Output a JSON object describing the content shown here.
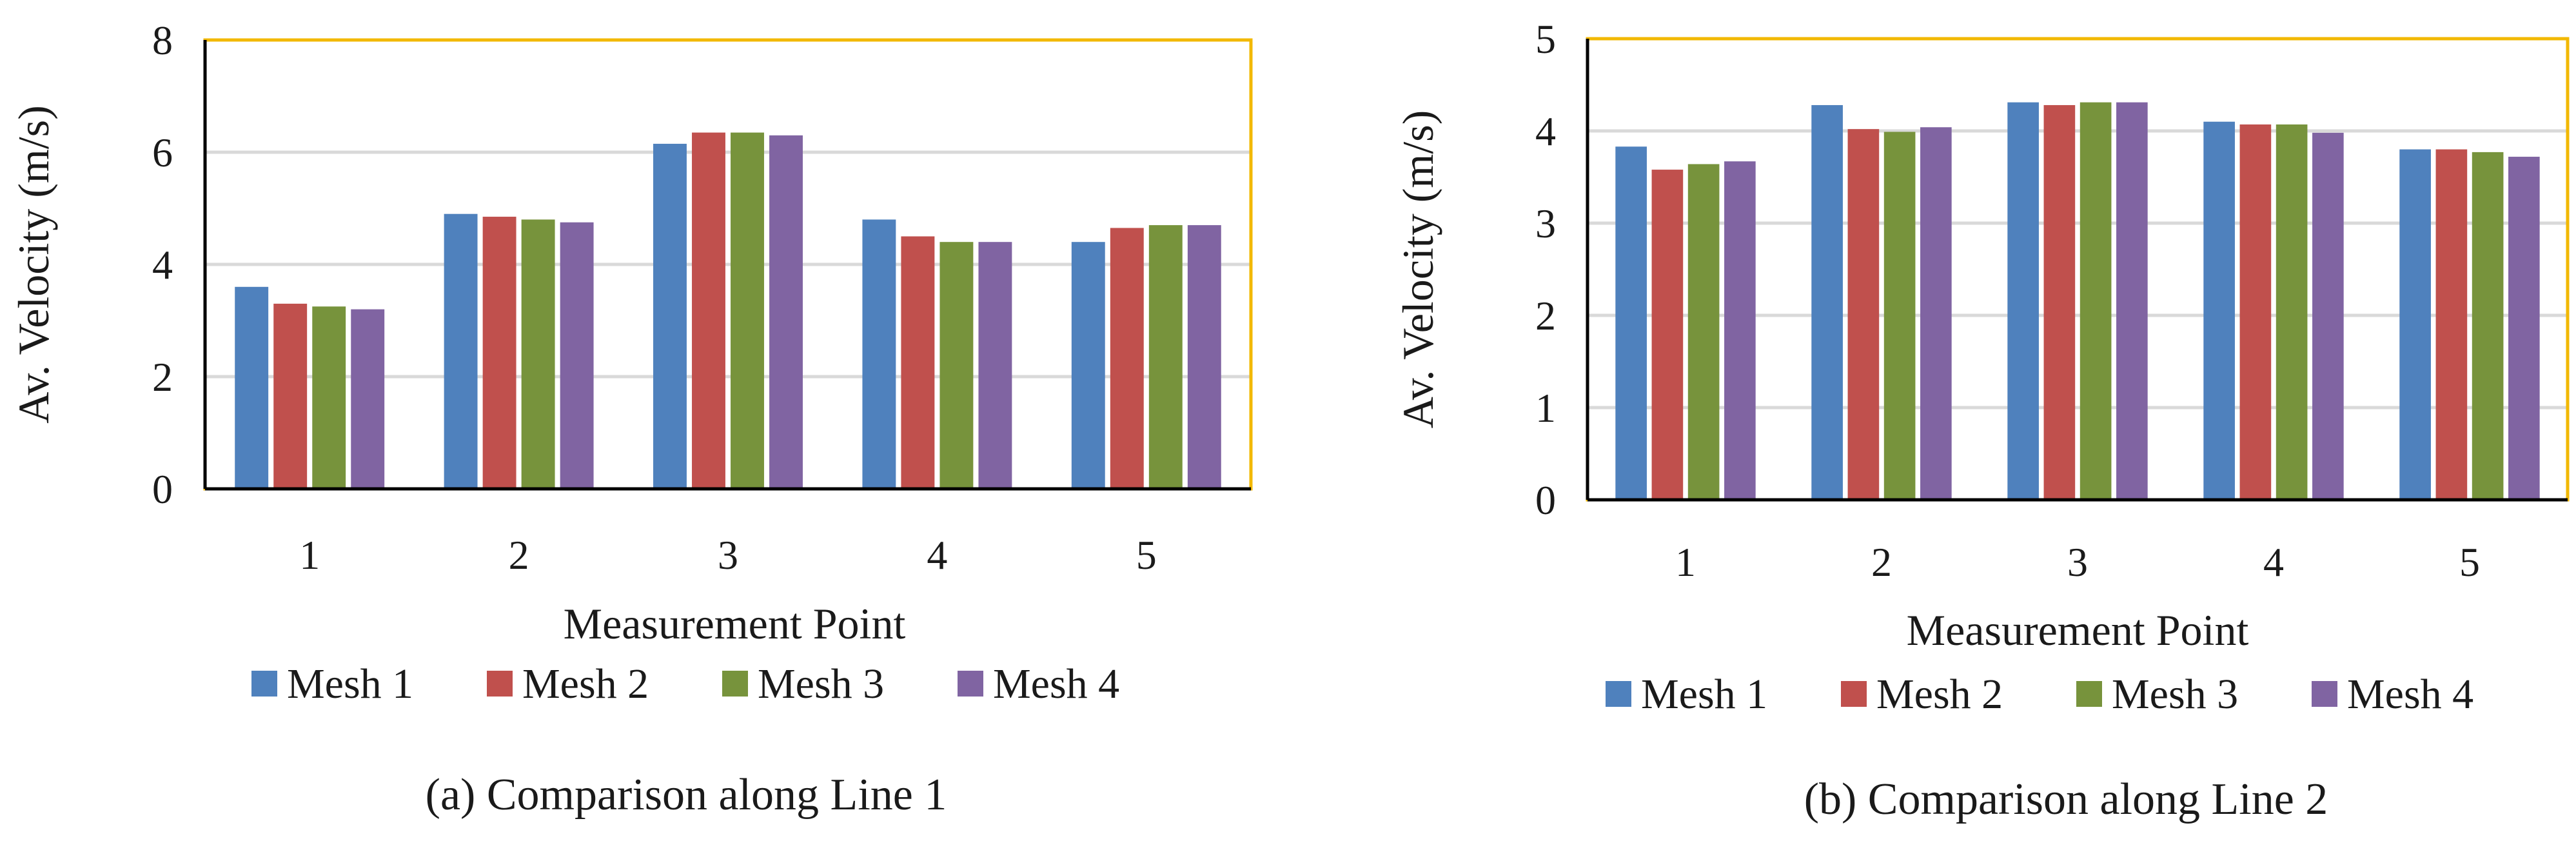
{
  "series_colors": {
    "Mesh 1": "#4f81bd",
    "Mesh 2": "#c0504d",
    "Mesh 3": "#77933c",
    "Mesh 4": "#8064a2"
  },
  "frame_color": "#f2b800",
  "gridline_color": "#d9d9d9",
  "chart_data": [
    {
      "type": "bar",
      "caption": "(a) Comparison along Line 1",
      "xlabel": "Measurement Point",
      "ylabel": "Av. Velocity (m/s)",
      "ylim": [
        0,
        8
      ],
      "yticks": [
        "0",
        "2",
        "4",
        "6",
        "8"
      ],
      "categories": [
        "1",
        "2",
        "3",
        "4",
        "5"
      ],
      "legend_position": "bottom",
      "series": [
        {
          "name": "Mesh 1",
          "values": [
            3.6,
            4.9,
            6.15,
            4.8,
            4.4
          ]
        },
        {
          "name": "Mesh 2",
          "values": [
            3.3,
            4.85,
            6.35,
            4.5,
            4.65
          ]
        },
        {
          "name": "Mesh 3",
          "values": [
            3.25,
            4.8,
            6.35,
            4.4,
            4.7
          ]
        },
        {
          "name": "Mesh 4",
          "values": [
            3.2,
            4.75,
            6.3,
            4.4,
            4.7
          ]
        }
      ]
    },
    {
      "type": "bar",
      "caption": "(b) Comparison along Line 2",
      "xlabel": "Measurement Point",
      "ylabel": "Av. Velocity (m/s)",
      "ylim": [
        0,
        5
      ],
      "yticks": [
        "0",
        "1",
        "2",
        "3",
        "4",
        "5"
      ],
      "categories": [
        "1",
        "2",
        "3",
        "4",
        "5"
      ],
      "legend_position": "bottom",
      "series": [
        {
          "name": "Mesh 1",
          "values": [
            3.83,
            4.28,
            4.31,
            4.1,
            3.8
          ]
        },
        {
          "name": "Mesh 2",
          "values": [
            3.58,
            4.02,
            4.28,
            4.07,
            3.8
          ]
        },
        {
          "name": "Mesh 3",
          "values": [
            3.64,
            3.99,
            4.31,
            4.07,
            3.77
          ]
        },
        {
          "name": "Mesh 4",
          "values": [
            3.67,
            4.04,
            4.31,
            3.98,
            3.72
          ]
        }
      ]
    }
  ]
}
